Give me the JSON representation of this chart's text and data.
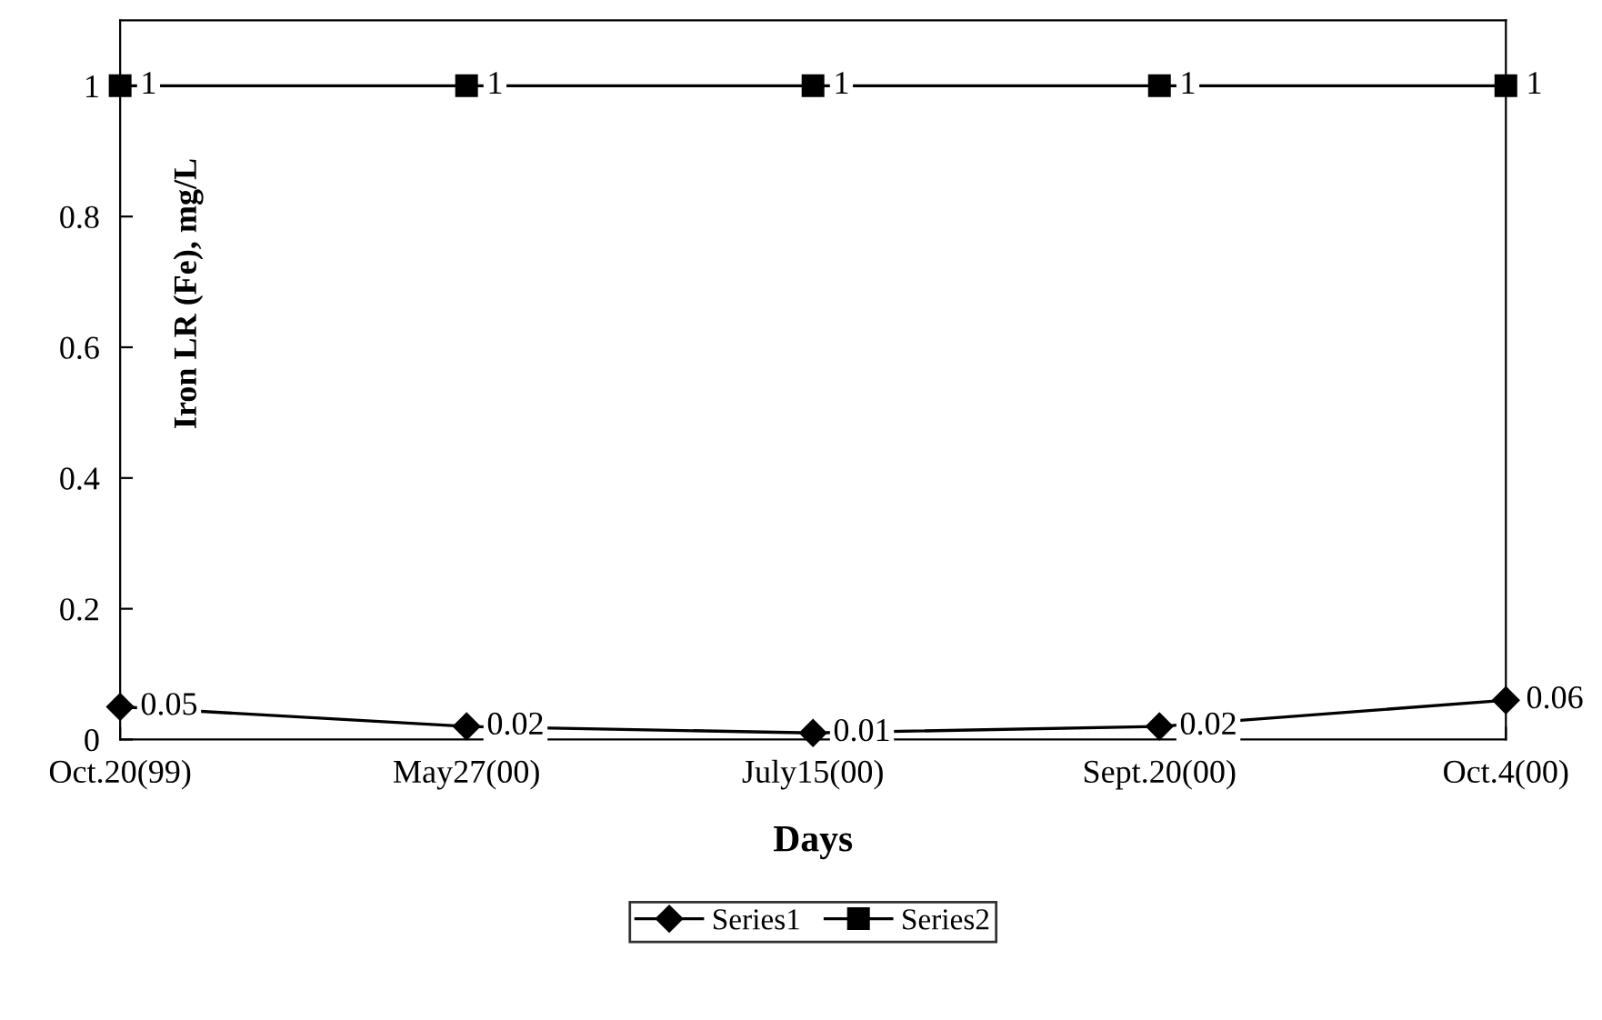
{
  "chart_data": {
    "type": "line",
    "xlabel": "Days",
    "ylabel": "Iron LR (Fe), mg/L",
    "categories": [
      "Oct.20(99)",
      "May27(00)",
      "July15(00)",
      "Sept.20(00)",
      "Oct.4(00)"
    ],
    "series": [
      {
        "name": "Series1",
        "color": "#000000",
        "marker": "diamond",
        "values": [
          0.05,
          0.02,
          0.01,
          0.02,
          0.06
        ]
      },
      {
        "name": "Series2",
        "color": "#000000",
        "marker": "square",
        "values": [
          1,
          1,
          1,
          1,
          1
        ]
      }
    ],
    "ylim": [
      0,
      1.1
    ],
    "yticks": [
      0,
      0.2,
      0.4,
      0.6,
      0.8,
      1
    ],
    "data_labels": true,
    "grid": false,
    "legend": "bottom",
    "line_style": "solid"
  }
}
